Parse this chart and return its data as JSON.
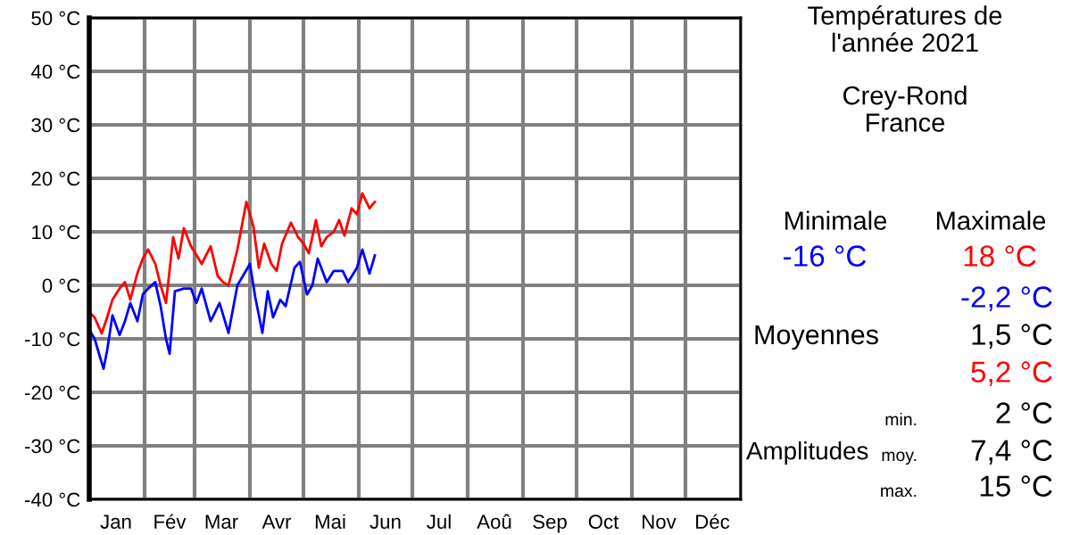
{
  "chart_data": [
    {
      "type": "line",
      "series": [
        {
          "color": "#0000ff",
          "x": [
            "2021-01-01",
            "2021-01-04",
            "2021-01-09",
            "2021-01-11",
            "2021-01-14",
            "2021-01-18",
            "2021-01-21",
            "2021-01-24",
            "2021-01-28",
            "2021-01-31",
            "2021-02-03",
            "2021-02-07",
            "2021-02-10",
            "2021-02-13",
            "2021-02-15",
            "2021-02-18",
            "2021-02-23",
            "2021-02-27",
            "2021-03-02",
            "2021-03-05",
            "2021-03-10",
            "2021-03-15",
            "2021-03-20",
            "2021-03-25",
            "2021-04-01",
            "2021-04-04",
            "2021-04-08",
            "2021-04-11",
            "2021-04-14",
            "2021-04-18",
            "2021-04-21",
            "2021-04-26",
            "2021-04-29",
            "2021-05-03",
            "2021-05-06",
            "2021-05-09",
            "2021-05-14",
            "2021-05-18",
            "2021-05-23",
            "2021-05-26",
            "2021-05-31",
            "2021-06-03",
            "2021-06-07",
            "2021-06-10"
          ],
          "values": [
            -8.3,
            -10,
            -15.6,
            -12.2,
            -5.6,
            -9.3,
            -6.7,
            -3.3,
            -6.7,
            -1.7,
            -0.6,
            0.6,
            -3.9,
            -10,
            -12.8,
            -1.1,
            -0.6,
            -0.6,
            -3.3,
            -0.6,
            -6.7,
            -3.3,
            -8.9,
            0,
            4,
            -2.2,
            -8.9,
            -1.1,
            -6,
            -2.7,
            -3.9,
            3.3,
            4.4,
            -1.7,
            0,
            5,
            0.6,
            2.7,
            2.7,
            0.6,
            3.3,
            6.7,
            2.2,
            5.6
          ]
        },
        {
          "color": "#ff0000",
          "x": [
            "2021-01-01",
            "2021-01-04",
            "2021-01-08",
            "2021-01-11",
            "2021-01-14",
            "2021-01-18",
            "2021-01-21",
            "2021-01-24",
            "2021-01-28",
            "2021-01-31",
            "2021-02-03",
            "2021-02-07",
            "2021-02-10",
            "2021-02-13",
            "2021-02-17",
            "2021-02-20",
            "2021-02-23",
            "2021-02-27",
            "2021-03-02",
            "2021-03-05",
            "2021-03-10",
            "2021-03-14",
            "2021-03-17",
            "2021-03-20",
            "2021-03-25",
            "2021-03-30",
            "2021-04-03",
            "2021-04-06",
            "2021-04-09",
            "2021-04-13",
            "2021-04-16",
            "2021-04-19",
            "2021-04-24",
            "2021-04-28",
            "2021-05-01",
            "2021-05-04",
            "2021-05-08",
            "2021-05-11",
            "2021-05-14",
            "2021-05-18",
            "2021-05-21",
            "2021-05-24",
            "2021-05-28",
            "2021-05-31",
            "2021-06-03",
            "2021-06-07",
            "2021-06-10"
          ],
          "values": [
            -5,
            -6,
            -9,
            -6,
            -2.7,
            -0.6,
            0.6,
            -2.7,
            2.3,
            5,
            6.7,
            4,
            0,
            -3.3,
            9,
            5,
            10.7,
            7.3,
            5.7,
            4,
            7.3,
            1.7,
            0.6,
            0,
            6.7,
            15.6,
            11,
            3.3,
            7.8,
            4,
            2.7,
            7.8,
            11.7,
            9,
            7.8,
            6,
            12.2,
            7.3,
            9,
            10,
            12.2,
            9.3,
            14.4,
            13.3,
            17.2,
            14.4,
            15.6
          ]
        }
      ],
      "xlim": [
        "2021-01-01",
        "2022-01-01"
      ],
      "xticks": [
        {
          "value": "2021-01-01",
          "label": null
        },
        {
          "value": "2021-02-01",
          "label": null
        },
        {
          "value": "2021-03-01",
          "label": null
        },
        {
          "value": "2021-04-01",
          "label": null
        },
        {
          "value": "2021-05-01",
          "label": null
        },
        {
          "value": "2021-06-01",
          "label": null
        },
        {
          "value": "2021-07-01",
          "label": null
        },
        {
          "value": "2021-08-01",
          "label": null
        },
        {
          "value": "2021-09-01",
          "label": null
        },
        {
          "value": "2021-10-01",
          "label": null
        },
        {
          "value": "2021-11-01",
          "label": null
        },
        {
          "value": "2021-12-01",
          "label": null
        },
        {
          "value": "2022-01-01",
          "label": null
        },
        {
          "value": "2021-01-16",
          "label": "Jan"
        },
        {
          "value": "2021-02-15",
          "label": "Fév"
        },
        {
          "value": "2021-03-16",
          "label": "Mar"
        },
        {
          "value": "2021-04-16",
          "label": "Avr"
        },
        {
          "value": "2021-05-16",
          "label": "Mai"
        },
        {
          "value": "2021-06-16",
          "label": "Jun"
        },
        {
          "value": "2021-07-16",
          "label": "Jul"
        },
        {
          "value": "2021-08-16",
          "label": "Aoû"
        },
        {
          "value": "2021-09-16",
          "label": "Sep"
        },
        {
          "value": "2021-10-16",
          "label": "Oct"
        },
        {
          "value": "2021-11-16",
          "label": "Nov"
        },
        {
          "value": "2021-12-16",
          "label": "Déc"
        }
      ],
      "ylim": [
        -40,
        50
      ],
      "yticks": [
        {
          "value": -40,
          "label": "-40 °C"
        },
        {
          "value": -30,
          "label": "-30 °C"
        },
        {
          "value": -20,
          "label": "-20 °C"
        },
        {
          "value": -10,
          "label": "-10 °C"
        },
        {
          "value": 0,
          "label": "0 °C"
        },
        {
          "value": 10,
          "label": "10 °C"
        },
        {
          "value": 20,
          "label": "20 °C"
        },
        {
          "value": 30,
          "label": "30 °C"
        },
        {
          "value": 40,
          "label": "40 °C"
        },
        {
          "value": 50,
          "label": "50 °C"
        }
      ],
      "grid": true,
      "legend": false,
      "marker": "none",
      "line_style": "solid"
    },
    {
      "type": "other",
      "title": "Températures de\nl'année 2021",
      "subtitle": "Crey-Rond\nFrance",
      "annotations": [
        "Minimale",
        "Maximale",
        "-16 °C",
        "18 °C",
        "-2,2 °C",
        "Moyennes",
        "1,5 °C",
        "5,2 °C",
        "min.",
        "2 °C",
        "Amplitudes",
        "moy.",
        "7,4 °C",
        "max.",
        "15 °C"
      ]
    }
  ]
}
